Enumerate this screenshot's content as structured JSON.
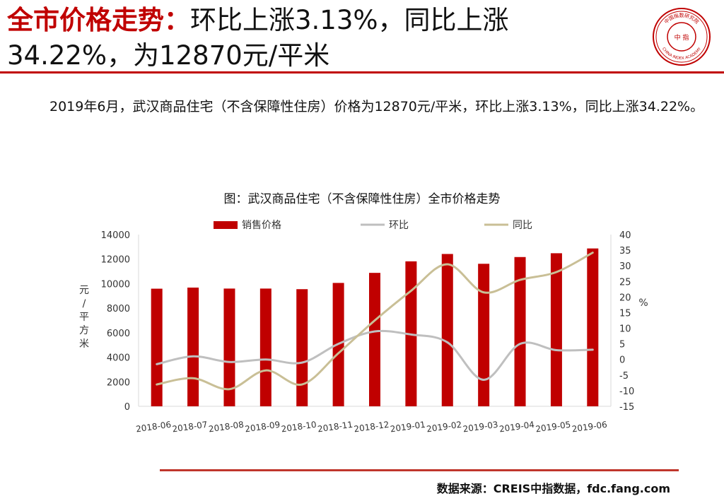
{
  "header": {
    "title_accent": "全市价格走势：",
    "title_rest": "环比上涨3.13%，同比上涨34.22%，为12870元/平米"
  },
  "body": {
    "paragraph": "2019年6月，武汉商品住宅（不含保障性住房）价格为12870元/平米，环比上涨3.13%，同比上涨34.22%。"
  },
  "footer": {
    "source": "数据来源：CREIS中指数据，fdc.fang.com"
  },
  "logo": {
    "icon": "china-index-academy-seal-icon",
    "ring_text": "CHINA INDEX ACADEMY",
    "top_text": "中国指数研究院",
    "center_text": "中 指"
  },
  "colors": {
    "accent": "#c00000",
    "bar": "#c00000",
    "mom_line": "#bfbfbf",
    "yoy_line": "#c9bf96",
    "footer_rule": "#c0362c"
  },
  "chart_data": {
    "type": "bar",
    "title": "图：武汉商品住宅（不含保障性住房）全市价格走势",
    "categories": [
      "2018-06",
      "2018-07",
      "2018-08",
      "2018-09",
      "2018-10",
      "2018-11",
      "2018-12",
      "2019-01",
      "2019-02",
      "2019-03",
      "2019-04",
      "2019-05",
      "2019-06"
    ],
    "series": [
      {
        "name": "销售价格",
        "type": "bar",
        "axis": "left",
        "values": [
          9590,
          9680,
          9600,
          9600,
          9550,
          10060,
          10880,
          11820,
          12420,
          11620,
          12170,
          12480,
          12870
        ]
      },
      {
        "name": "环比",
        "type": "line",
        "axis": "right",
        "values": [
          -1.5,
          1.0,
          -0.8,
          0.0,
          -1.0,
          5.0,
          9.0,
          8.0,
          5.5,
          -6.5,
          5.0,
          3.0,
          3.13
        ]
      },
      {
        "name": "同比",
        "type": "line",
        "axis": "right",
        "values": [
          -8.0,
          -6.0,
          -9.5,
          -3.5,
          -8.0,
          2.0,
          12.5,
          22.0,
          30.5,
          21.5,
          25.5,
          28.0,
          34.22
        ]
      }
    ],
    "left_axis": {
      "label": "元/平方米",
      "min": 0,
      "max": 14000,
      "ticks": [
        0,
        2000,
        4000,
        6000,
        8000,
        10000,
        12000,
        14000
      ]
    },
    "right_axis": {
      "label": "%",
      "min": -15,
      "max": 40,
      "ticks": [
        -15,
        -10,
        -5,
        0,
        5,
        10,
        15,
        20,
        25,
        30,
        35,
        40
      ]
    },
    "legend_position": "top",
    "grid": false
  }
}
